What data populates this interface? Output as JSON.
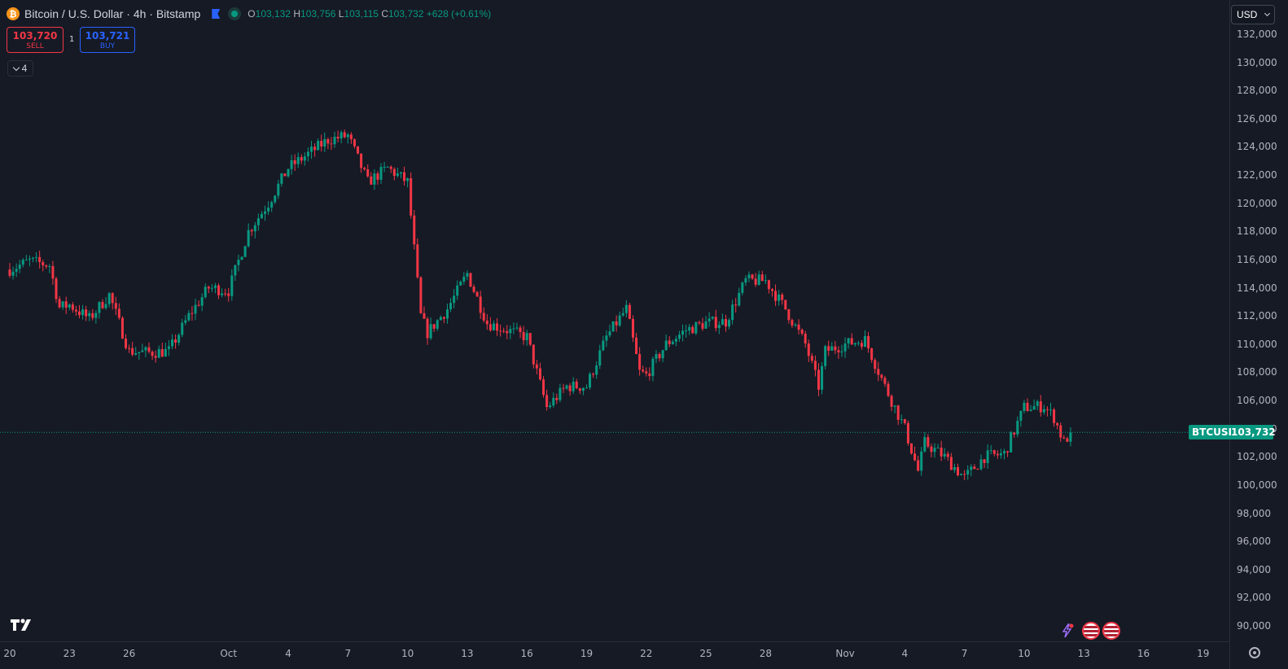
{
  "header": {
    "coin_icon": "bitcoin-icon",
    "coin_symbol": "₿",
    "title": "Bitcoin / U.S. Dollar · 4h · Bitstamp",
    "ohlc": {
      "o_label": "O",
      "o": "103,132",
      "h_label": "H",
      "h": "103,756",
      "l_label": "L",
      "l": "103,115",
      "c_label": "C",
      "c": "103,732",
      "change": "+628 (+0.61%)"
    }
  },
  "trade": {
    "sell_price": "103,720",
    "sell_label": "SELL",
    "spread": "1",
    "buy_price": "103,721",
    "buy_label": "BUY"
  },
  "indicators_toggle": {
    "count": "4"
  },
  "currency": "USD",
  "price_line": {
    "symbol": "BTCUSD",
    "price": "103,732",
    "value": 103732
  },
  "colors": {
    "up": "#089981",
    "down": "#f23645",
    "background": "#161a25",
    "grid": "#2a2e39"
  },
  "chart_data": {
    "type": "candlestick",
    "title": "Bitcoin / U.S. Dollar · 4h · Bitstamp",
    "ylim": [
      89000,
      133000
    ],
    "y_ticks": [
      "132,000",
      "130,000",
      "128,000",
      "126,000",
      "124,000",
      "122,000",
      "120,000",
      "118,000",
      "116,000",
      "114,000",
      "112,000",
      "110,000",
      "108,000",
      "106,000",
      "104,000",
      "102,000",
      "100,000",
      "98,000",
      "96,000",
      "94,000",
      "92,000",
      "90,000"
    ],
    "x_ticks": [
      "20",
      "23",
      "26",
      "Oct",
      "4",
      "7",
      "10",
      "13",
      "16",
      "19",
      "22",
      "25",
      "28",
      "Nov",
      "4",
      "7",
      "10",
      "13",
      "16",
      "19"
    ],
    "x_tick_dates": [
      "2025-09-20",
      "2025-09-23",
      "2025-09-26",
      "2025-10-01",
      "2025-10-04",
      "2025-10-07",
      "2025-10-10",
      "2025-10-13",
      "2025-10-16",
      "2025-10-19",
      "2025-10-22",
      "2025-10-25",
      "2025-10-28",
      "2025-11-01",
      "2025-11-04",
      "2025-11-07",
      "2025-11-10",
      "2025-11-13",
      "2025-11-16",
      "2025-11-19"
    ],
    "series_anchors": [
      {
        "date": "2025-09-20",
        "close": 115300
      },
      {
        "date": "2025-09-21",
        "close": 115900
      },
      {
        "date": "2025-09-22",
        "close": 115600
      },
      {
        "date": "2025-09-22T12:00",
        "close": 112600
      },
      {
        "date": "2025-09-23",
        "close": 112800
      },
      {
        "date": "2025-09-24",
        "close": 111800
      },
      {
        "date": "2025-09-25",
        "close": 113500
      },
      {
        "date": "2025-09-26",
        "close": 109500
      },
      {
        "date": "2025-09-27",
        "close": 109400
      },
      {
        "date": "2025-09-28",
        "close": 109500
      },
      {
        "date": "2025-09-29",
        "close": 112000
      },
      {
        "date": "2025-09-30",
        "close": 114000
      },
      {
        "date": "2025-10-01",
        "close": 113800
      },
      {
        "date": "2025-10-02",
        "close": 118000
      },
      {
        "date": "2025-10-03",
        "close": 120000
      },
      {
        "date": "2025-10-04",
        "close": 122500
      },
      {
        "date": "2025-10-05",
        "close": 123500
      },
      {
        "date": "2025-10-06",
        "close": 124500
      },
      {
        "date": "2025-10-07",
        "close": 124800
      },
      {
        "date": "2025-10-08",
        "close": 121500
      },
      {
        "date": "2025-10-09",
        "close": 122500
      },
      {
        "date": "2025-10-10",
        "close": 121500
      },
      {
        "date": "2025-10-10T16:00",
        "close": 112000
      },
      {
        "date": "2025-10-11",
        "close": 110800
      },
      {
        "date": "2025-10-12",
        "close": 112500
      },
      {
        "date": "2025-10-13",
        "close": 115000
      },
      {
        "date": "2025-10-14",
        "close": 111500
      },
      {
        "date": "2025-10-15",
        "close": 111000
      },
      {
        "date": "2025-10-16",
        "close": 110500
      },
      {
        "date": "2025-10-17",
        "close": 105500
      },
      {
        "date": "2025-10-18",
        "close": 107000
      },
      {
        "date": "2025-10-19",
        "close": 107000
      },
      {
        "date": "2025-10-20",
        "close": 110500
      },
      {
        "date": "2025-10-21",
        "close": 112500
      },
      {
        "date": "2025-10-21T16:00",
        "close": 108000
      },
      {
        "date": "2025-10-22",
        "close": 107800
      },
      {
        "date": "2025-10-23",
        "close": 110000
      },
      {
        "date": "2025-10-24",
        "close": 111000
      },
      {
        "date": "2025-10-25",
        "close": 111500
      },
      {
        "date": "2025-10-26",
        "close": 111600
      },
      {
        "date": "2025-10-27",
        "close": 114500
      },
      {
        "date": "2025-10-28",
        "close": 114500
      },
      {
        "date": "2025-10-29",
        "close": 112500
      },
      {
        "date": "2025-10-30",
        "close": 110000
      },
      {
        "date": "2025-10-30T16:00",
        "close": 107000
      },
      {
        "date": "2025-10-31",
        "close": 109500
      },
      {
        "date": "2025-11-01",
        "close": 110000
      },
      {
        "date": "2025-11-02",
        "close": 110300
      },
      {
        "date": "2025-11-03",
        "close": 107000
      },
      {
        "date": "2025-11-04",
        "close": 104000
      },
      {
        "date": "2025-11-04T16:00",
        "close": 101000
      },
      {
        "date": "2025-11-05",
        "close": 103000
      },
      {
        "date": "2025-11-06",
        "close": 102000
      },
      {
        "date": "2025-11-07",
        "close": 100500
      },
      {
        "date": "2025-11-08",
        "close": 102000
      },
      {
        "date": "2025-11-09",
        "close": 102200
      },
      {
        "date": "2025-11-10",
        "close": 105500
      },
      {
        "date": "2025-11-11",
        "close": 105600
      },
      {
        "date": "2025-11-11T12:00",
        "close": 104800
      },
      {
        "date": "2025-11-12",
        "close": 103000
      },
      {
        "date": "2025-11-12T08:00",
        "close": 103732
      }
    ]
  },
  "icons": {
    "logo": "tradingview-logo-icon",
    "flag": "flag-icon",
    "market_status": "market-open-dot-icon",
    "events": [
      "flash-event-icon",
      "us-flag-event-icon",
      "us-flag-event-icon"
    ],
    "settings": "settings-icon"
  }
}
